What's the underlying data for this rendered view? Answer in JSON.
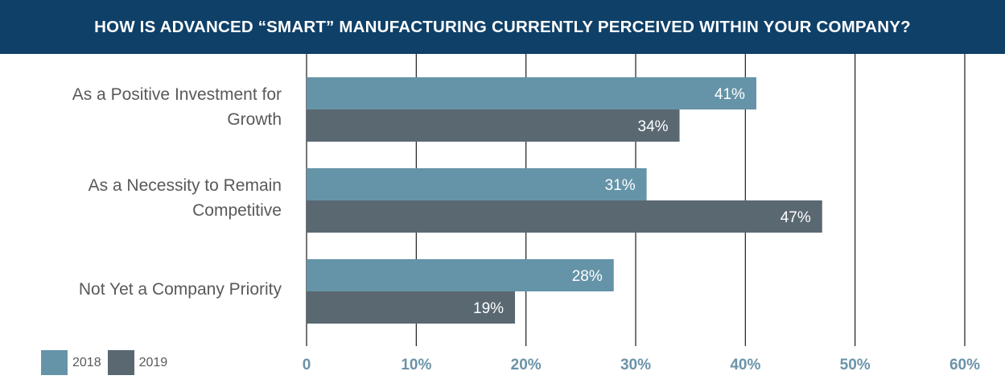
{
  "chart_data": {
    "type": "bar",
    "orientation": "horizontal",
    "title": "HOW IS ADVANCED “SMART” MANUFACTURING CURRENTLY PERCEIVED WITHIN YOUR COMPANY?",
    "categories": [
      [
        "As a Positive Investment for",
        "Growth"
      ],
      [
        "As a Necessity to Remain",
        "Competitive"
      ],
      [
        "Not Yet a Company Priority"
      ]
    ],
    "series": [
      {
        "name": "2018",
        "values": [
          41,
          31,
          28
        ],
        "labels": [
          "41%",
          "31%",
          "28%"
        ]
      },
      {
        "name": "2019",
        "values": [
          34,
          47,
          19
        ],
        "labels": [
          "34%",
          "47%",
          "19%"
        ]
      }
    ],
    "xlim": [
      0,
      60
    ],
    "xticks": [
      {
        "value": 0,
        "label": "0"
      },
      {
        "value": 10,
        "label": "10%"
      },
      {
        "value": 20,
        "label": "20%"
      },
      {
        "value": 30,
        "label": "30%"
      },
      {
        "value": 40,
        "label": "40%"
      },
      {
        "value": 50,
        "label": "50%"
      },
      {
        "value": 60,
        "label": "60%"
      }
    ],
    "grid": true,
    "legend": "bottom-left",
    "colors": {
      "banner": "#0f4068",
      "series_2018": "#6594a8",
      "series_2019": "#5a6872",
      "tick_label": "#6b93a8",
      "gridline": "#1c1c1c"
    }
  }
}
